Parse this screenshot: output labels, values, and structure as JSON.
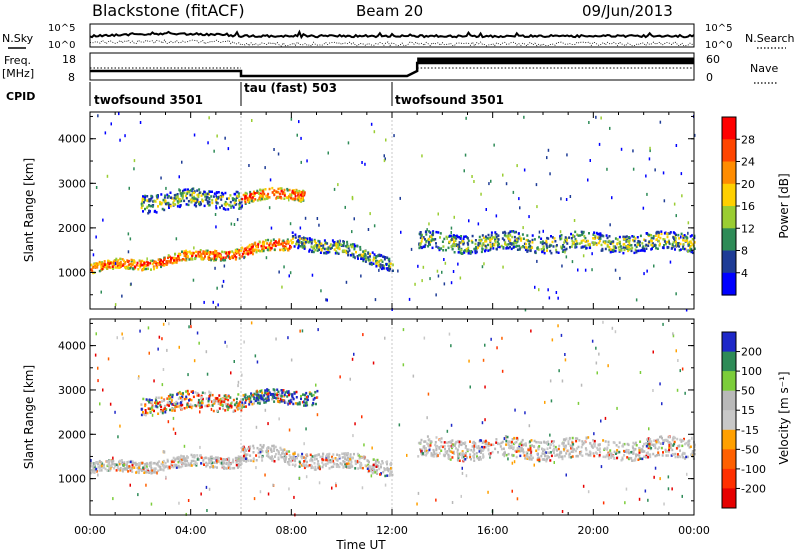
{
  "header": {
    "station": "Blackstone (fitACF)",
    "beam": "Beam 20",
    "date": "09/Jun/2013"
  },
  "noise_panel": {
    "left_label": "N.Sky",
    "right_label": "N.Search",
    "left_ticks": [
      "10^5",
      "10^0"
    ],
    "right_ticks": [
      "10^5",
      "10^0"
    ]
  },
  "freq_panel": {
    "left_label_line1": "Freq.",
    "left_label_line2": "[MHz]",
    "right_label": "Nave",
    "left_ticks": [
      "18",
      "8"
    ],
    "right_ticks": [
      "60",
      "0"
    ]
  },
  "cpid": {
    "label": "CPID",
    "segments": [
      {
        "name": "twofsound 3501",
        "start_h": 0,
        "end_h": 6
      },
      {
        "name": "tau (fast) 503",
        "start_h": 6,
        "end_h": 12
      },
      {
        "name": "twofsound 3501",
        "start_h": 12,
        "end_h": 24
      }
    ]
  },
  "power_colorbar": {
    "label": "Power [dB]",
    "ticks": [
      "28",
      "24",
      "20",
      "16",
      "12",
      "8",
      "4"
    ],
    "colors": [
      "#ff0000",
      "#ff4500",
      "#ff8c00",
      "#ffd000",
      "#9acd32",
      "#2e8b57",
      "#1e3c96",
      "#0000ff"
    ]
  },
  "velocity_colorbar": {
    "label": "Velocity [m s⁻¹]",
    "ticks": [
      "200",
      "100",
      "50",
      "15",
      "-15",
      "-50",
      "-100",
      "-200"
    ],
    "colors": [
      "#1e28c8",
      "#2e8b57",
      "#7ccd3a",
      "#b9b9b9",
      "#c8c8c8",
      "#ffa000",
      "#ff6000",
      "#ff3000",
      "#e60000"
    ]
  },
  "chart_data": [
    {
      "type": "heatmap",
      "title": "Power",
      "ylabel": "Slant Range [km]",
      "xlabel": "Time UT",
      "x_ticks": [
        "00:00",
        "04:00",
        "08:00",
        "12:00",
        "16:00",
        "20:00",
        "00:00"
      ],
      "y_ticks": [
        "1000",
        "2000",
        "3000",
        "4000"
      ],
      "xlim_hours": [
        0,
        24
      ],
      "ylim_km": [
        180,
        4600
      ],
      "colorbar_label": "Power [dB]",
      "scatter_bands": [
        {
          "t0": 0.0,
          "t1": 6.0,
          "r_start": 1100,
          "r_end": 1500,
          "width": 220,
          "level": "high"
        },
        {
          "t0": 2.0,
          "t1": 6.0,
          "r_start": 2600,
          "r_end": 2700,
          "width": 400,
          "level": "mid"
        },
        {
          "t0": 6.0,
          "t1": 8.5,
          "r_start": 2700,
          "r_end": 2800,
          "width": 250,
          "level": "high"
        },
        {
          "t0": 6.0,
          "t1": 8.0,
          "r_start": 1500,
          "r_end": 1650,
          "width": 250,
          "level": "high"
        },
        {
          "t0": 8.0,
          "t1": 12.0,
          "r_start": 1800,
          "r_end": 1250,
          "width": 300,
          "level": "mid"
        },
        {
          "t0": 13.0,
          "t1": 24.0,
          "r_start": 1700,
          "r_end": 1700,
          "width": 400,
          "level": "mid"
        }
      ]
    },
    {
      "type": "heatmap",
      "title": "Velocity",
      "ylabel": "Slant Range [km]",
      "xlabel": "Time UT",
      "x_ticks": [
        "00:00",
        "04:00",
        "08:00",
        "12:00",
        "16:00",
        "20:00",
        "00:00"
      ],
      "y_ticks": [
        "1000",
        "2000",
        "3000",
        "4000"
      ],
      "xlim_hours": [
        0,
        24
      ],
      "ylim_km": [
        180,
        4600
      ],
      "colorbar_label": "Velocity [m s⁻¹]",
      "scatter_bands": [
        {
          "t0": 0.0,
          "t1": 6.0,
          "r_start": 1250,
          "r_end": 1450,
          "width": 250,
          "level": "low"
        },
        {
          "t0": 2.0,
          "t1": 6.0,
          "r_start": 2700,
          "r_end": 2800,
          "width": 400,
          "level": "mixed"
        },
        {
          "t0": 6.0,
          "t1": 9.0,
          "r_start": 2800,
          "r_end": 2900,
          "width": 300,
          "level": "high"
        },
        {
          "t0": 6.0,
          "t1": 12.0,
          "r_start": 1600,
          "r_end": 1300,
          "width": 350,
          "level": "low"
        },
        {
          "t0": 13.0,
          "t1": 24.0,
          "r_start": 1700,
          "r_end": 1700,
          "width": 450,
          "level": "low"
        }
      ]
    }
  ],
  "x_axis_label": "Time UT"
}
